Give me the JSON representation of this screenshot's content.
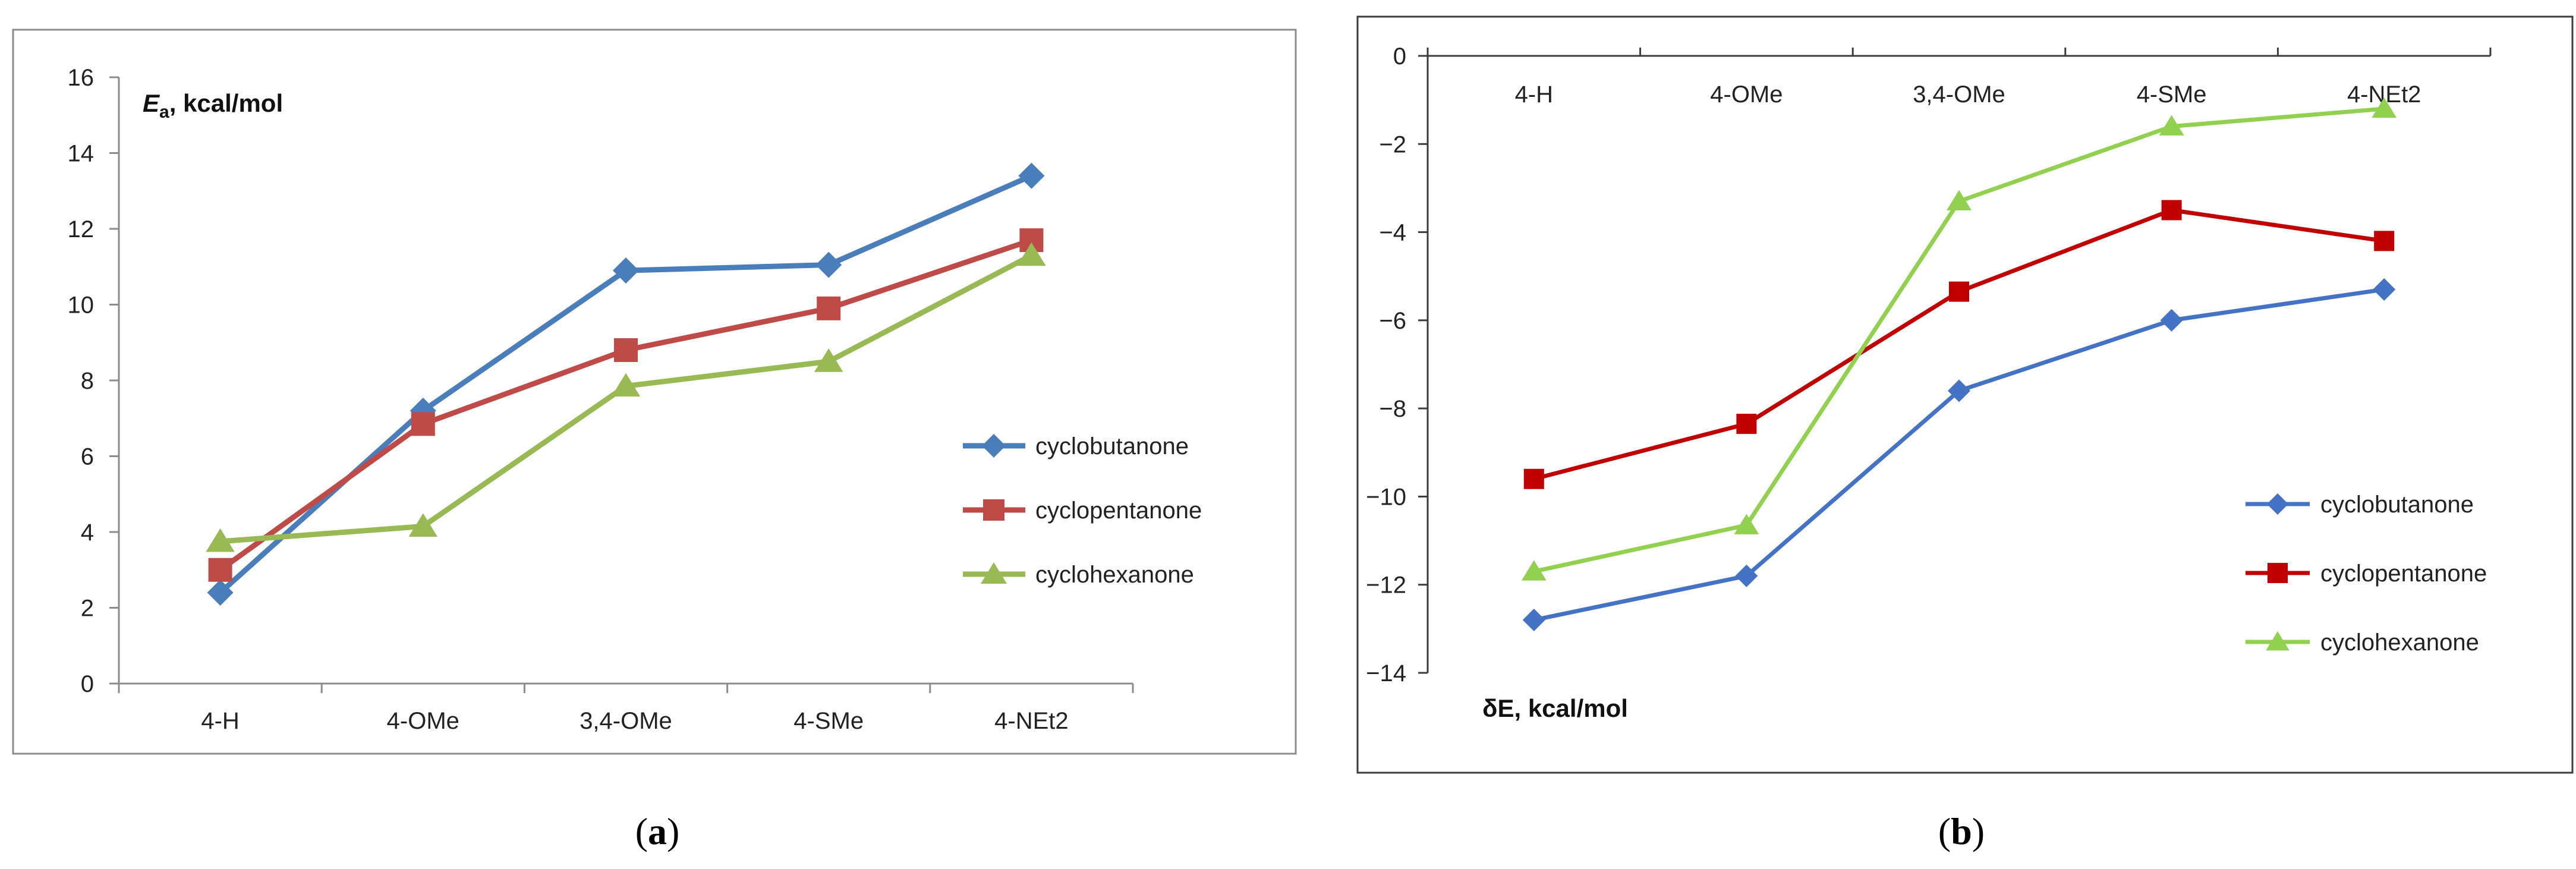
{
  "chart_data": [
    {
      "type": "line",
      "panel_label": "a",
      "categories": [
        "4-H",
        "4-OMe",
        "3,4-OMe",
        "4-SMe",
        "4-NEt2"
      ],
      "ylabel_main": "E",
      "ylabel_sub": "a",
      "ylabel_rest": ", kcal/mol",
      "ylim": [
        0,
        16
      ],
      "yticks": [
        "0",
        "2",
        "4",
        "6",
        "8",
        "10",
        "12",
        "14",
        "16"
      ],
      "grid": false,
      "legend_position": "right",
      "series": [
        {
          "name": "cyclobutanone",
          "color": "#4a7ebb",
          "marker": "diamond",
          "values": [
            2.4,
            7.2,
            10.9,
            11.05,
            13.4
          ]
        },
        {
          "name": "cyclopentanone",
          "color": "#be4b48",
          "marker": "square",
          "values": [
            3.0,
            6.85,
            8.8,
            9.9,
            11.7
          ]
        },
        {
          "name": "cyclohexanone",
          "color": "#98b954",
          "marker": "triangle",
          "values": [
            3.75,
            4.15,
            7.85,
            8.5,
            11.3
          ]
        }
      ]
    },
    {
      "type": "line",
      "panel_label": "b",
      "categories": [
        "4-H",
        "4-OMe",
        "3,4-OMe",
        "4-SMe",
        "4-NEt2"
      ],
      "ylabel": "δE, kcal/mol",
      "ylim": [
        -14,
        0
      ],
      "yticks": [
        "0",
        "−2",
        "−4",
        "−6",
        "−8",
        "−10",
        "−12",
        "−14"
      ],
      "grid": false,
      "legend_position": "bottom-right",
      "series": [
        {
          "name": "cyclobutanone",
          "color": "#4472c4",
          "marker": "diamond",
          "values": [
            -12.8,
            -11.8,
            -7.6,
            -6.0,
            -5.3
          ]
        },
        {
          "name": "cyclopentanone",
          "color": "#c00000",
          "marker": "square",
          "values": [
            -9.6,
            -8.35,
            -5.35,
            -3.5,
            -4.2
          ]
        },
        {
          "name": "cyclohexanone",
          "color": "#92d050",
          "marker": "triangle",
          "values": [
            -11.7,
            -10.65,
            -3.3,
            -1.6,
            -1.2
          ]
        }
      ]
    }
  ]
}
